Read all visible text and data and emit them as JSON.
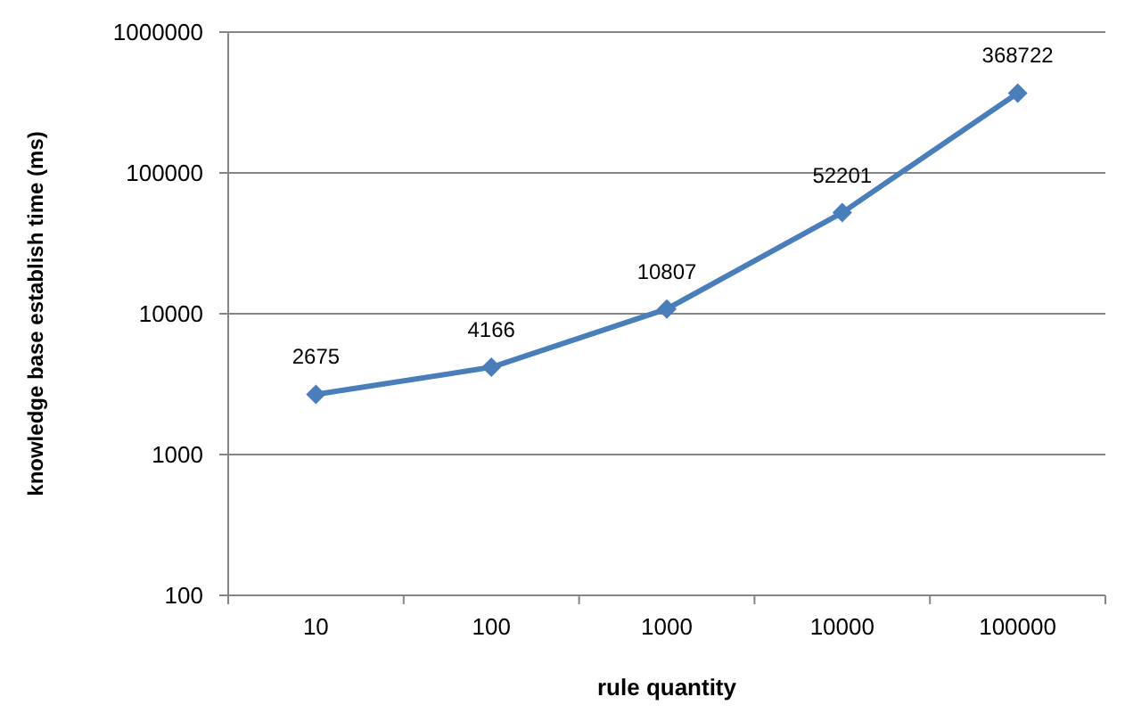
{
  "chart_data": {
    "type": "line",
    "xlabel": "rule quantity",
    "ylabel": "knowledge base establish time (ms)",
    "categories": [
      "10",
      "100",
      "1000",
      "10000",
      "100000"
    ],
    "series": [
      {
        "color": "#4a7ebb",
        "values": [
          2675,
          4166,
          10807,
          52201,
          368722
        ]
      }
    ],
    "log": true,
    "ylim": [
      100,
      1000000
    ],
    "yticks": [
      100,
      1000,
      10000,
      100000,
      1000000
    ],
    "grid": "y",
    "data_labels": true,
    "marker": "diamond",
    "line_style": "solid"
  }
}
